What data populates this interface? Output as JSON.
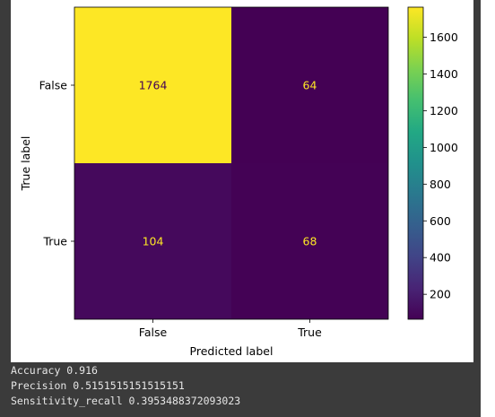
{
  "chart_data": {
    "type": "heatmap",
    "title": "",
    "xlabel": "Predicted label",
    "ylabel": "True label",
    "x_categories": [
      "False",
      "True"
    ],
    "y_categories": [
      "False",
      "True"
    ],
    "matrix": [
      [
        1764,
        64
      ],
      [
        104,
        68
      ]
    ],
    "colormap": "viridis",
    "colorbar": {
      "ticks": [
        200,
        400,
        600,
        800,
        1000,
        1200,
        1400,
        1600
      ],
      "range": [
        64,
        1764
      ]
    },
    "text_colors": {
      "on_bright": "#440154",
      "on_dark": "#fde725"
    }
  },
  "output": [
    "Accuracy 0.916",
    "Precision 0.5151515151515151",
    "Sensitivity_recall 0.3953488372093023"
  ]
}
